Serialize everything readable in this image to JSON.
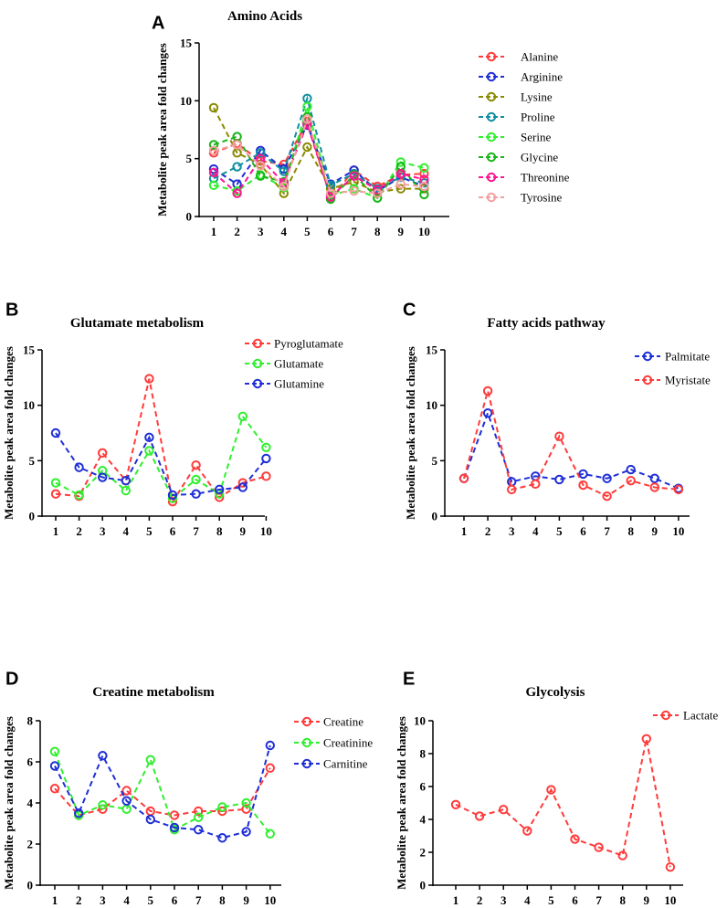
{
  "chart_data": [
    {
      "panel": "A",
      "type": "line",
      "title": "Amino Acids",
      "ylabel": "Metabolite peak area fold changes",
      "xlabel": "",
      "categories": [
        "1",
        "2",
        "3",
        "4",
        "5",
        "6",
        "7",
        "8",
        "9",
        "10"
      ],
      "ylim": [
        0,
        15
      ],
      "yticks": [
        0,
        5,
        10,
        15
      ],
      "grid": false,
      "legend": "right",
      "series": [
        {
          "name": "Alanine",
          "color": "#ff3b3b",
          "values": [
            5.5,
            6.3,
            4.8,
            4.5,
            8.2,
            1.6,
            4.0,
            2.6,
            3.6,
            3.7
          ]
        },
        {
          "name": "Arginine",
          "color": "#1f2fd6",
          "values": [
            4.1,
            2.8,
            5.7,
            4.1,
            7.9,
            2.8,
            4.0,
            2.2,
            3.4,
            2.6
          ]
        },
        {
          "name": "Lysine",
          "color": "#8a8a00",
          "values": [
            9.4,
            5.5,
            4.5,
            2.0,
            6.0,
            2.4,
            3.0,
            2.1,
            2.4,
            2.4
          ]
        },
        {
          "name": "Proline",
          "color": "#0e8fa0",
          "values": [
            3.3,
            4.3,
            5.5,
            3.9,
            10.2,
            2.7,
            3.7,
            2.4,
            3.4,
            2.9
          ]
        },
        {
          "name": "Serine",
          "color": "#2ff02f",
          "values": [
            2.7,
            2.2,
            3.6,
            2.5,
            9.5,
            1.8,
            2.4,
            1.6,
            4.7,
            4.2
          ]
        },
        {
          "name": "Glycine",
          "color": "#17b517",
          "values": [
            6.2,
            6.9,
            3.5,
            3.0,
            8.6,
            1.5,
            3.6,
            1.6,
            4.3,
            1.9
          ]
        },
        {
          "name": "Threonine",
          "color": "#ff1493",
          "values": [
            3.8,
            2.0,
            5.0,
            2.9,
            8.0,
            1.7,
            3.5,
            2.3,
            3.7,
            3.2
          ]
        },
        {
          "name": "Tyrosine",
          "color": "#f4a0a0",
          "values": [
            5.7,
            6.2,
            4.4,
            2.6,
            8.4,
            2.0,
            2.2,
            2.0,
            2.8,
            2.6
          ]
        }
      ]
    },
    {
      "panel": "B",
      "type": "line",
      "title": "Glutamate metabolism",
      "ylabel": "Metabolite peak area fold changes",
      "xlabel": "",
      "categories": [
        "1",
        "2",
        "3",
        "4",
        "5",
        "6",
        "7",
        "8",
        "9",
        "10"
      ],
      "ylim": [
        0,
        15
      ],
      "yticks": [
        0,
        5,
        10,
        15
      ],
      "grid": false,
      "legend": "top-right",
      "series": [
        {
          "name": "Pyroglutamate",
          "color": "#ff3b3b",
          "values": [
            2.0,
            1.8,
            5.7,
            3.2,
            12.4,
            1.3,
            4.6,
            1.7,
            3.0,
            3.6
          ]
        },
        {
          "name": "Glutamate",
          "color": "#2ff02f",
          "values": [
            3.0,
            1.9,
            4.1,
            2.3,
            5.9,
            1.6,
            3.3,
            2.0,
            9.0,
            6.2
          ]
        },
        {
          "name": "Glutamine",
          "color": "#1f2fd6",
          "values": [
            7.5,
            4.4,
            3.5,
            3.2,
            7.1,
            1.9,
            2.0,
            2.4,
            2.6,
            5.2
          ]
        }
      ]
    },
    {
      "panel": "C",
      "type": "line",
      "title": "Fatty acids pathway",
      "ylabel": "Metabolite peak area fold changes",
      "xlabel": "",
      "categories": [
        "1",
        "2",
        "3",
        "4",
        "5",
        "6",
        "7",
        "8",
        "9",
        "10"
      ],
      "ylim": [
        0,
        15
      ],
      "yticks": [
        0,
        5,
        10,
        15
      ],
      "grid": false,
      "legend": "top-right",
      "series": [
        {
          "name": "Palmitate",
          "color": "#1f2fd6",
          "values": [
            3.4,
            9.3,
            3.1,
            3.6,
            3.3,
            3.8,
            3.4,
            4.2,
            3.4,
            2.5
          ]
        },
        {
          "name": "Myristate",
          "color": "#ff3b3b",
          "values": [
            3.4,
            11.3,
            2.4,
            2.9,
            7.2,
            2.8,
            1.8,
            3.2,
            2.6,
            2.4
          ]
        }
      ]
    },
    {
      "panel": "D",
      "type": "line",
      "title": "Creatine metabolism",
      "ylabel": "Metabolite peak area fold changes",
      "xlabel": "",
      "categories": [
        "1",
        "2",
        "3",
        "4",
        "5",
        "6",
        "7",
        "8",
        "9",
        "10"
      ],
      "ylim": [
        0,
        8
      ],
      "yticks": [
        0,
        2,
        4,
        6,
        8
      ],
      "grid": false,
      "legend": "top-right",
      "series": [
        {
          "name": "Creatine",
          "color": "#ff3b3b",
          "values": [
            4.7,
            3.4,
            3.7,
            4.6,
            3.6,
            3.4,
            3.6,
            3.6,
            3.7,
            5.7
          ]
        },
        {
          "name": "Creatinine",
          "color": "#2ff02f",
          "values": [
            6.5,
            3.4,
            3.9,
            3.7,
            6.1,
            2.7,
            3.3,
            3.8,
            4.0,
            2.5
          ]
        },
        {
          "name": "Carnitine",
          "color": "#1f2fd6",
          "values": [
            5.8,
            3.5,
            6.3,
            4.1,
            3.2,
            2.8,
            2.7,
            2.3,
            2.6,
            6.8
          ]
        }
      ]
    },
    {
      "panel": "E",
      "type": "line",
      "title": "Glycolysis",
      "ylabel": "Metabolite peak area fold changes",
      "xlabel": "",
      "categories": [
        "1",
        "2",
        "3",
        "4",
        "5",
        "6",
        "7",
        "8",
        "9",
        "10"
      ],
      "ylim": [
        0,
        10
      ],
      "yticks": [
        0,
        2,
        4,
        6,
        8,
        10
      ],
      "grid": false,
      "legend": "top-right",
      "series": [
        {
          "name": "Lactate",
          "color": "#ff3b3b",
          "values": [
            4.9,
            4.2,
            4.6,
            3.3,
            5.8,
            2.8,
            2.3,
            1.8,
            8.9,
            1.1
          ]
        }
      ]
    }
  ]
}
